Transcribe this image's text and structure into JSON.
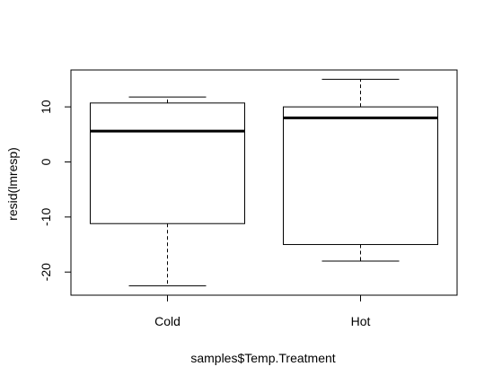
{
  "chart_data": {
    "type": "boxplot",
    "title": "",
    "xlabel": "samples$Temp.Treatment",
    "ylabel": "resid(lmresp)",
    "categories": [
      "Cold",
      "Hot"
    ],
    "boxes": [
      {
        "category": "Cold",
        "whisker_low": -22.5,
        "q1": -11.2,
        "median": 5.6,
        "q3": 10.7,
        "whisker_high": 11.8
      },
      {
        "category": "Hot",
        "whisker_low": -18.0,
        "q1": -15.0,
        "median": 8.0,
        "q3": 10.0,
        "whisker_high": 15.0
      }
    ],
    "yticks": [
      -20,
      -10,
      0,
      10
    ],
    "ytick_labels": [
      "-20",
      "-10",
      "0",
      "10"
    ],
    "ylim": [
      -24.2,
      16.7
    ],
    "grid": false,
    "legend": "none",
    "colors": {
      "box_fill": "#ffffff",
      "stroke": "#000000"
    }
  }
}
